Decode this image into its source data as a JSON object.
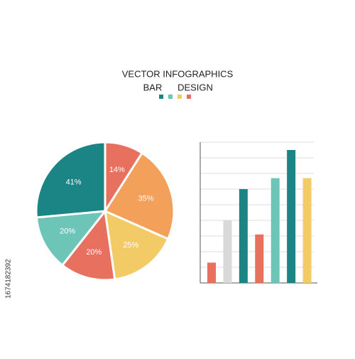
{
  "header": {
    "line1": "VECTOR INFOGRAPHICS",
    "line2_left": "BAR",
    "line2_right": "DESIGN"
  },
  "stock_id": "1674182392",
  "chart_data": [
    {
      "type": "pie",
      "values": [
        14,
        35,
        25,
        20,
        20,
        41
      ],
      "value_labels": [
        "14%",
        "35%",
        "25%",
        "20%",
        "20%",
        "41%"
      ],
      "colors": [
        "#e8705f",
        "#f2a05a",
        "#f2cb66",
        "#e8705f",
        "#6dc5b8",
        "#1b8485"
      ]
    },
    {
      "type": "bar",
      "categories": [
        null,
        null,
        null,
        null,
        null,
        null,
        null
      ],
      "values": [
        1.3,
        4.0,
        6.0,
        3.1,
        6.7,
        8.5,
        6.7
      ],
      "colors": [
        "#e8705f",
        "#d9d9d9",
        "#1b8485",
        "#e8705f",
        "#6dc5b8",
        "#1b8485",
        "#f2cb66"
      ],
      "ylim": [
        0,
        9
      ],
      "yticks": [
        1,
        2,
        3,
        4,
        5,
        6,
        7,
        8,
        9
      ],
      "grid": true
    }
  ]
}
